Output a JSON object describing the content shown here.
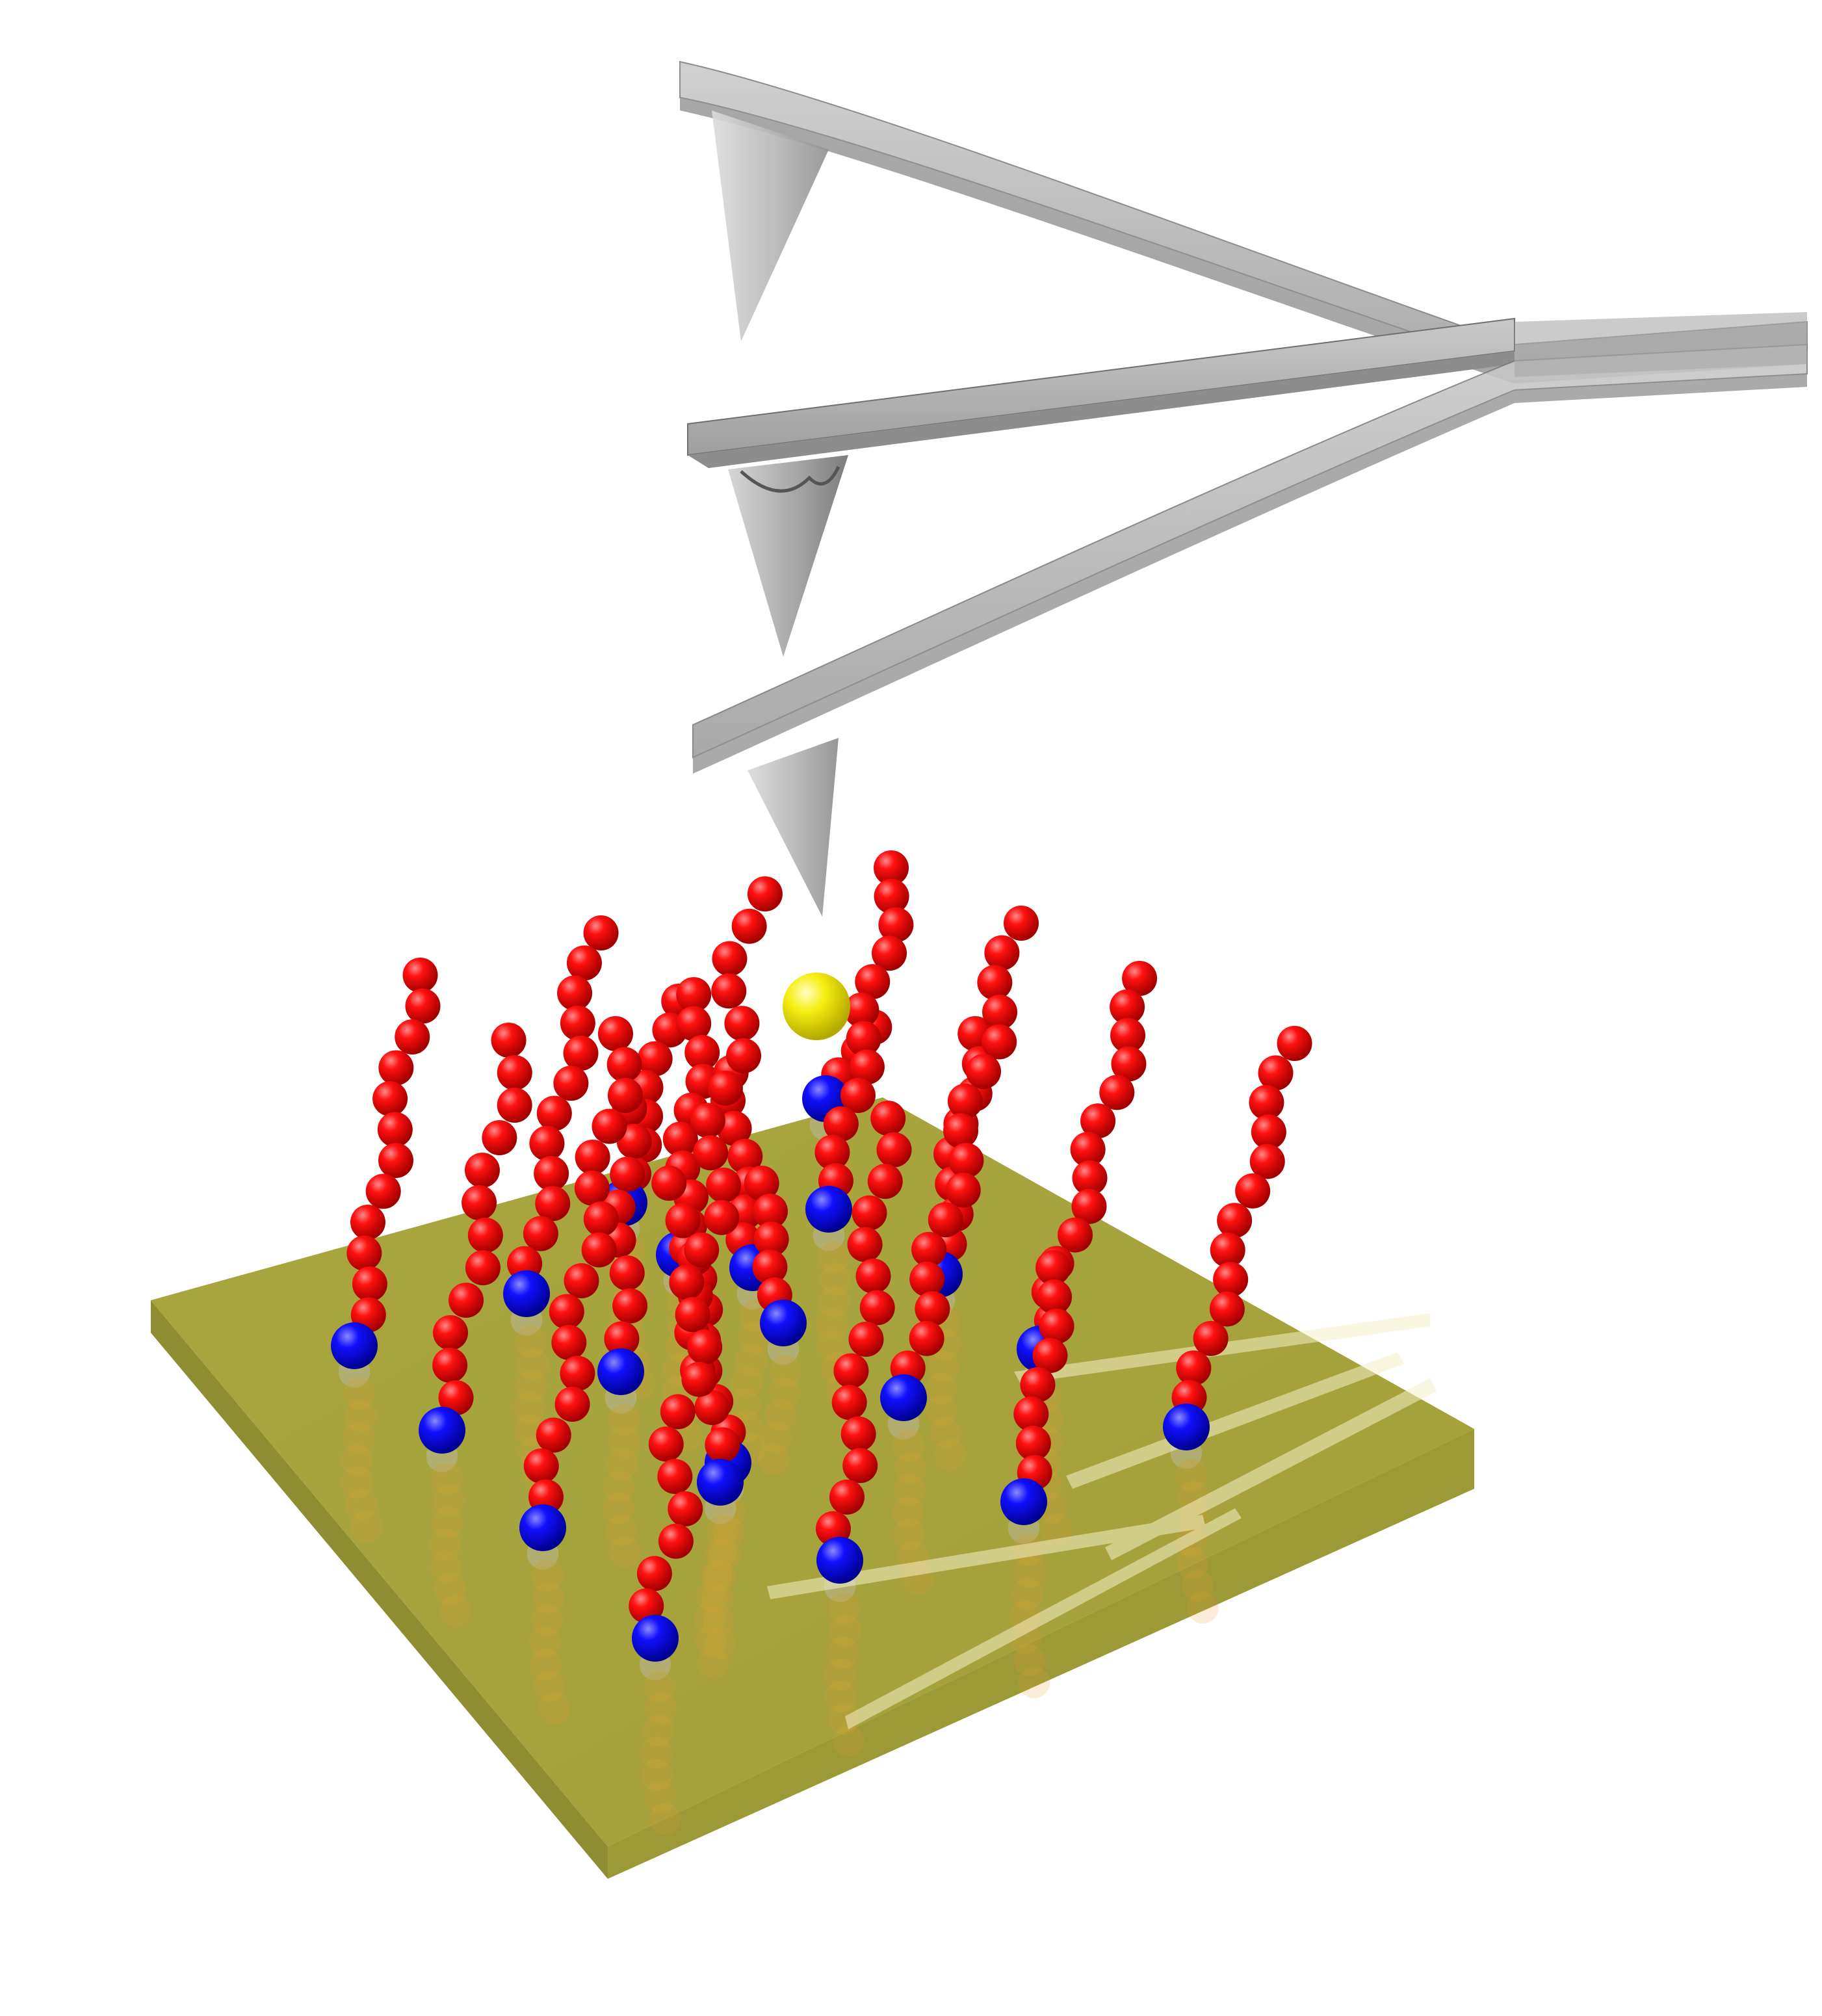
{
  "figure": {
    "description_text": "",
    "colors": {
      "background": "#ffffff",
      "substrate_top": "#a6a33c",
      "substrate_front": "#9a9838",
      "substrate_side": "#7e7c2b",
      "cantilever": "#b8b8b8",
      "cantilever_dark": "#8a8a8a",
      "bead_red": "#ee0000",
      "anchor_blue": "#0000dd",
      "probe_yellow": "#f2e600"
    }
  },
  "scene": {
    "cantilevers": [
      {
        "name": "cantilever-bent-up"
      },
      {
        "name": "cantilever-straight"
      },
      {
        "name": "cantilever-bent-down"
      }
    ],
    "chains": [
      {
        "id": "c1"
      },
      {
        "id": "c2"
      },
      {
        "id": "c3"
      },
      {
        "id": "c4"
      },
      {
        "id": "c5"
      },
      {
        "id": "c6"
      },
      {
        "id": "c7"
      },
      {
        "id": "c8"
      },
      {
        "id": "c9"
      },
      {
        "id": "c10"
      },
      {
        "id": "c11"
      },
      {
        "id": "c12"
      },
      {
        "id": "c13"
      },
      {
        "id": "c14"
      },
      {
        "id": "c15"
      },
      {
        "id": "c16"
      },
      {
        "id": "c17"
      },
      {
        "id": "c18"
      },
      {
        "id": "c19"
      },
      {
        "id": "c20"
      }
    ],
    "probe_particle": {
      "name": "yellow-probe-bead"
    }
  }
}
